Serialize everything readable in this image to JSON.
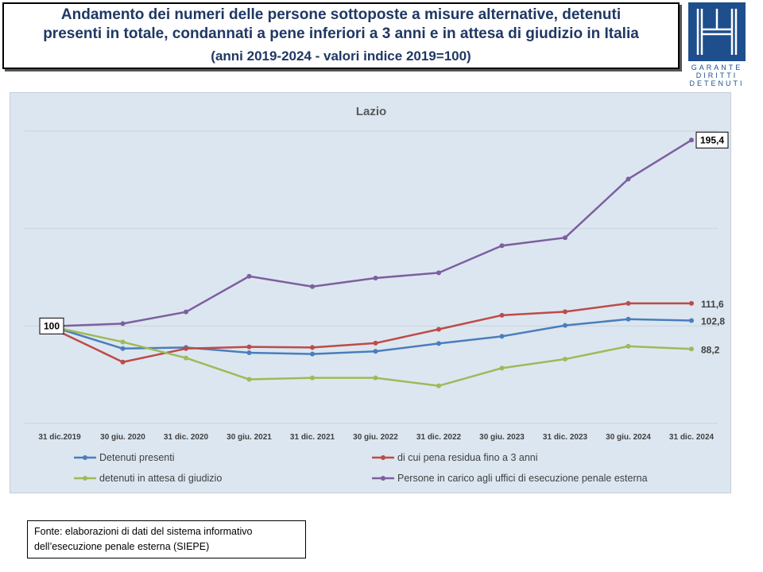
{
  "header": {
    "title_line1": "Andamento dei numeri delle persone sottoposte a misure alternative, detenuti",
    "title_line2": "presenti in totale, condannati a pene inferiori a 3 anni e in attesa di giudizio in Italia",
    "subtitle": "(anni 2019-2024  - valori indice 2019=100)"
  },
  "logo": {
    "line1": "GARANTE",
    "line2": "DIRITTI",
    "line3": "DETENUTI",
    "color": "#1e4e8c"
  },
  "chart_data": {
    "type": "line",
    "title": "Lazio",
    "xlabel": "",
    "ylabel": "",
    "ylim": [
      50,
      200
    ],
    "grid": true,
    "legend_position": "bottom",
    "categories": [
      "31 dic.2019",
      "30 giu. 2020",
      "31 dic. 2020",
      "30 giu. 2021",
      "31 dic. 2021",
      "30 giu. 2022",
      "31 dic. 2022",
      "30 giu. 2023",
      "31 dic. 2023",
      "30 giu. 2024",
      "31 dic. 2024"
    ],
    "series": [
      {
        "name": "Detenuti presenti",
        "color": "#4a7ebb",
        "values": [
          98.5,
          88.4,
          89.0,
          86.3,
          85.6,
          87.0,
          91.0,
          94.7,
          100.3,
          103.5,
          102.8
        ]
      },
      {
        "name": "di cui pena residua fino a 3 anni",
        "color": "#be4b48",
        "values": [
          97.0,
          81.5,
          88.4,
          89.3,
          89.0,
          91.2,
          98.3,
          105.5,
          107.3,
          111.6,
          111.6
        ]
      },
      {
        "name": "detenuti in attesa di giudizio",
        "color": "#9bbb59",
        "values": [
          98.8,
          91.8,
          83.6,
          72.6,
          73.4,
          73.4,
          69.3,
          78.4,
          83.0,
          89.6,
          88.2
        ]
      },
      {
        "name": "Persone in carico agli uffici di esecuzione penale esterna",
        "color": "#7d5fa0",
        "values": [
          100.0,
          101.2,
          107.2,
          125.5,
          120.2,
          124.6,
          127.3,
          141.2,
          145.3,
          175.4,
          195.4
        ]
      }
    ],
    "annotations": {
      "start": "100",
      "end_series_4": "195,4",
      "end_series_2": "111,6",
      "end_series_1": "102,8",
      "end_series_3": "88,2"
    }
  },
  "source": {
    "line1": "Fonte: elaborazioni di dati del sistema informativo",
    "line2": "dell’esecuzione penale esterna (SIEPE)"
  }
}
